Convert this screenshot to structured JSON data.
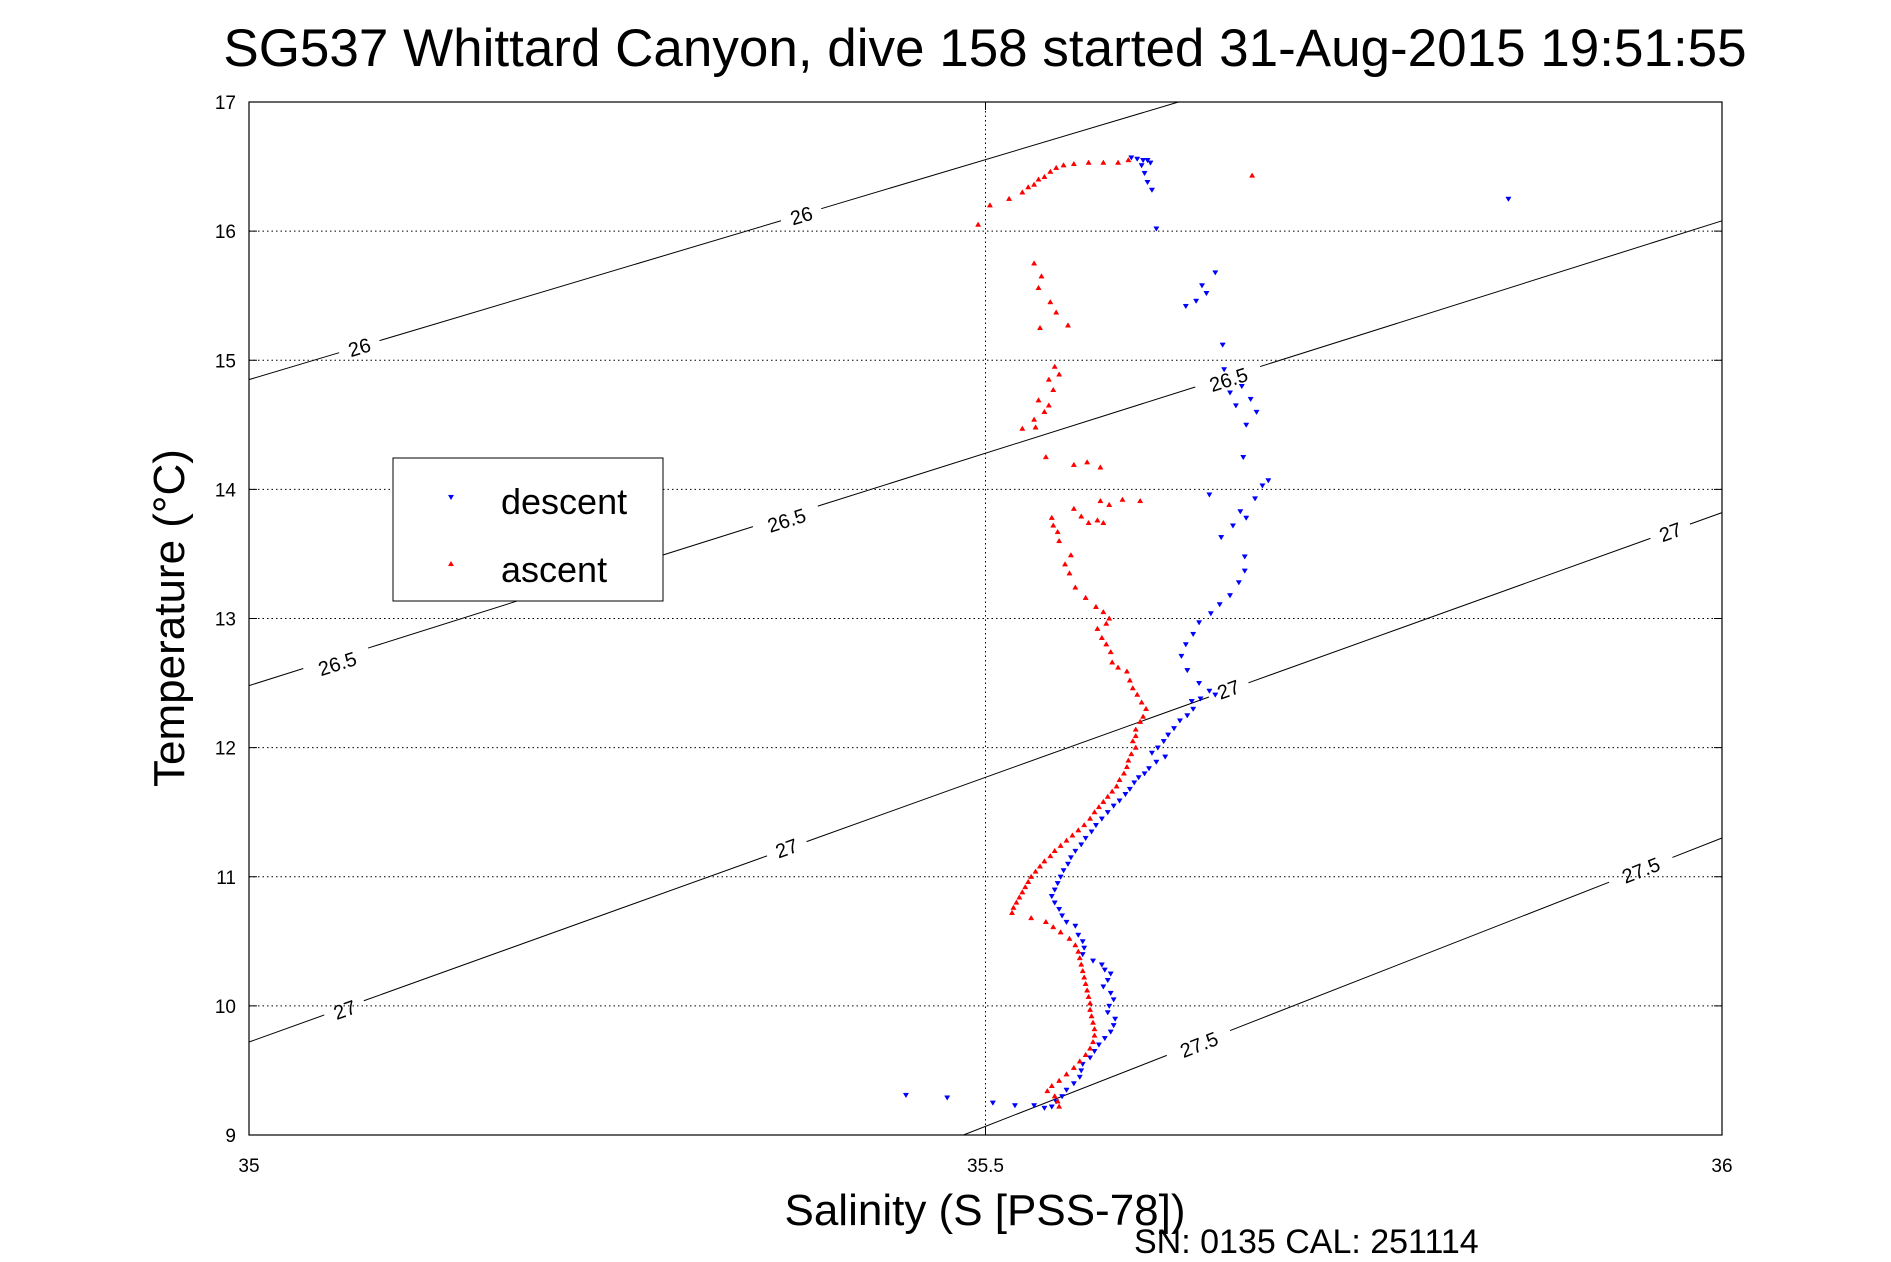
{
  "chart_data": {
    "type": "scatter",
    "title": "SG537 Whittard Canyon, dive 158 started 31-Aug-2015 19:51:55",
    "xlabel": "Salinity (S [PSS-78])",
    "ylabel": "Temperature (°C)",
    "xlim": [
      35,
      36
    ],
    "ylim": [
      9,
      17
    ],
    "x_ticks": [
      "35",
      "35.5",
      "36"
    ],
    "y_ticks": [
      "9",
      "10",
      "11",
      "12",
      "13",
      "14",
      "15",
      "16",
      "17"
    ],
    "grid": true,
    "legend_position": "left",
    "footer": "SN: 0135  CAL: 251114",
    "colors": {
      "descent": "#0000ff",
      "ascent": "#ff0000",
      "contour": "#000000"
    },
    "contours": [
      {
        "sigma": 26.0,
        "line": [
          [
            35.0,
            14.85
          ],
          [
            35.631,
            17.0
          ]
        ],
        "labels": [
          {
            "text": "26",
            "s": 35.075,
            "t": 15.1
          },
          {
            "text": "26",
            "s": 35.375,
            "t": 16.12
          }
        ]
      },
      {
        "sigma": 26.5,
        "line": [
          [
            35.0,
            12.48
          ],
          [
            36.0,
            16.08
          ]
        ],
        "labels": [
          {
            "text": "26.5",
            "s": 35.06,
            "t": 12.65
          },
          {
            "text": "26.5",
            "s": 35.365,
            "t": 13.76
          },
          {
            "text": "26.5",
            "s": 35.665,
            "t": 14.85
          }
        ]
      },
      {
        "sigma": 27.0,
        "line": [
          [
            35.0,
            9.72
          ],
          [
            36.0,
            13.82
          ]
        ],
        "labels": [
          {
            "text": "27",
            "s": 35.065,
            "t": 9.97
          },
          {
            "text": "27",
            "s": 35.365,
            "t": 11.22
          },
          {
            "text": "27",
            "s": 35.665,
            "t": 12.45
          },
          {
            "text": "27",
            "s": 35.965,
            "t": 13.67
          }
        ]
      },
      {
        "sigma": 27.5,
        "line": [
          [
            35.485,
            9.0
          ],
          [
            36.0,
            11.3
          ]
        ],
        "labels": [
          {
            "text": "27.5",
            "s": 35.645,
            "t": 9.7
          },
          {
            "text": "27.5",
            "s": 35.945,
            "t": 11.05
          }
        ]
      }
    ],
    "series": [
      {
        "name": "descent",
        "marker": "triangle-down",
        "points": [
          [
            35.599,
            16.57
          ],
          [
            35.603,
            16.56
          ],
          [
            35.607,
            16.55
          ],
          [
            35.61,
            16.55
          ],
          [
            35.612,
            16.53
          ],
          [
            35.606,
            16.51
          ],
          [
            35.608,
            16.45
          ],
          [
            35.61,
            16.38
          ],
          [
            35.613,
            16.32
          ],
          [
            35.616,
            16.02
          ],
          [
            35.855,
            16.25
          ],
          [
            35.656,
            15.68
          ],
          [
            35.647,
            15.58
          ],
          [
            35.65,
            15.52
          ],
          [
            35.643,
            15.46
          ],
          [
            35.636,
            15.42
          ],
          [
            35.661,
            15.12
          ],
          [
            35.662,
            14.93
          ],
          [
            35.666,
            14.75
          ],
          [
            35.674,
            14.8
          ],
          [
            35.67,
            14.65
          ],
          [
            35.68,
            14.7
          ],
          [
            35.684,
            14.6
          ],
          [
            35.677,
            14.5
          ],
          [
            35.675,
            14.25
          ],
          [
            35.692,
            14.07
          ],
          [
            35.688,
            14.03
          ],
          [
            35.683,
            13.93
          ],
          [
            35.652,
            13.96
          ],
          [
            35.673,
            13.83
          ],
          [
            35.677,
            13.78
          ],
          [
            35.668,
            13.72
          ],
          [
            35.66,
            13.63
          ],
          [
            35.676,
            13.48
          ],
          [
            35.676,
            13.37
          ],
          [
            35.672,
            13.28
          ],
          [
            35.666,
            13.18
          ],
          [
            35.659,
            13.11
          ],
          [
            35.653,
            13.04
          ],
          [
            35.645,
            12.97
          ],
          [
            35.641,
            12.88
          ],
          [
            35.636,
            12.8
          ],
          [
            35.633,
            12.71
          ],
          [
            35.637,
            12.6
          ],
          [
            35.645,
            12.5
          ],
          [
            35.652,
            12.44
          ],
          [
            35.656,
            12.41
          ],
          [
            35.646,
            12.38
          ],
          [
            35.64,
            12.36
          ],
          [
            35.641,
            12.3
          ],
          [
            35.637,
            12.25
          ],
          [
            35.632,
            12.21
          ],
          [
            35.628,
            12.15
          ],
          [
            35.624,
            12.1
          ],
          [
            35.621,
            12.05
          ],
          [
            35.617,
            12.0
          ],
          [
            35.613,
            11.96
          ],
          [
            35.622,
            11.93
          ],
          [
            35.616,
            11.89
          ],
          [
            35.611,
            11.84
          ],
          [
            35.608,
            11.8
          ],
          [
            35.604,
            11.77
          ],
          [
            35.601,
            11.73
          ],
          [
            35.598,
            11.68
          ],
          [
            35.595,
            11.64
          ],
          [
            35.591,
            11.59
          ],
          [
            35.587,
            11.55
          ],
          [
            35.583,
            11.5
          ],
          [
            35.579,
            11.45
          ],
          [
            35.575,
            11.4
          ],
          [
            35.572,
            11.35
          ],
          [
            35.568,
            11.3
          ],
          [
            35.565,
            11.25
          ],
          [
            35.561,
            11.2
          ],
          [
            35.558,
            11.15
          ],
          [
            35.556,
            11.1
          ],
          [
            35.553,
            11.05
          ],
          [
            35.551,
            11.0
          ],
          [
            35.549,
            10.95
          ],
          [
            35.547,
            10.9
          ],
          [
            35.545,
            10.85
          ],
          [
            35.547,
            10.8
          ],
          [
            35.55,
            10.75
          ],
          [
            35.552,
            10.7
          ],
          [
            35.555,
            10.65
          ],
          [
            35.561,
            10.62
          ],
          [
            35.563,
            10.55
          ],
          [
            35.566,
            10.5
          ],
          [
            35.567,
            10.45
          ],
          [
            35.566,
            10.4
          ],
          [
            35.573,
            10.35
          ],
          [
            35.579,
            10.32
          ],
          [
            35.581,
            10.28
          ],
          [
            35.585,
            10.25
          ],
          [
            35.583,
            10.2
          ],
          [
            35.58,
            10.15
          ],
          [
            35.585,
            10.1
          ],
          [
            35.587,
            10.05
          ],
          [
            35.584,
            10.0
          ],
          [
            35.583,
            9.95
          ],
          [
            35.588,
            9.9
          ],
          [
            35.587,
            9.85
          ],
          [
            35.585,
            9.8
          ],
          [
            35.581,
            9.75
          ],
          [
            35.577,
            9.7
          ],
          [
            35.574,
            9.65
          ],
          [
            35.571,
            9.6
          ],
          [
            35.566,
            9.55
          ],
          [
            35.565,
            9.5
          ],
          [
            35.564,
            9.45
          ],
          [
            35.56,
            9.4
          ],
          [
            35.555,
            9.35
          ],
          [
            35.552,
            9.3
          ],
          [
            35.548,
            9.26
          ],
          [
            35.545,
            9.22
          ],
          [
            35.54,
            9.21
          ],
          [
            35.533,
            9.23
          ],
          [
            35.52,
            9.23
          ],
          [
            35.505,
            9.25
          ],
          [
            35.446,
            9.31
          ],
          [
            35.474,
            9.29
          ]
        ]
      },
      {
        "name": "ascent",
        "marker": "triangle-up",
        "points": [
          [
            35.597,
            16.55
          ],
          [
            35.59,
            16.53
          ],
          [
            35.58,
            16.53
          ],
          [
            35.57,
            16.53
          ],
          [
            35.56,
            16.52
          ],
          [
            35.553,
            16.51
          ],
          [
            35.548,
            16.49
          ],
          [
            35.544,
            16.46
          ],
          [
            35.54,
            16.42
          ],
          [
            35.536,
            16.4
          ],
          [
            35.533,
            16.36
          ],
          [
            35.529,
            16.34
          ],
          [
            35.525,
            16.3
          ],
          [
            35.516,
            16.25
          ],
          [
            35.503,
            16.2
          ],
          [
            35.495,
            16.05
          ],
          [
            35.681,
            16.43
          ],
          [
            35.533,
            15.75
          ],
          [
            35.538,
            15.65
          ],
          [
            35.536,
            15.56
          ],
          [
            35.544,
            15.45
          ],
          [
            35.548,
            15.37
          ],
          [
            35.537,
            15.25
          ],
          [
            35.556,
            15.27
          ],
          [
            35.547,
            14.95
          ],
          [
            35.55,
            14.89
          ],
          [
            35.543,
            14.85
          ],
          [
            35.546,
            14.77
          ],
          [
            35.536,
            14.69
          ],
          [
            35.543,
            14.65
          ],
          [
            35.54,
            14.6
          ],
          [
            35.533,
            14.54
          ],
          [
            35.534,
            14.48
          ],
          [
            35.525,
            14.47
          ],
          [
            35.541,
            14.25
          ],
          [
            35.56,
            14.19
          ],
          [
            35.569,
            14.21
          ],
          [
            35.578,
            14.17
          ],
          [
            35.578,
            13.91
          ],
          [
            35.584,
            13.88
          ],
          [
            35.593,
            13.92
          ],
          [
            35.605,
            13.91
          ],
          [
            35.56,
            13.85
          ],
          [
            35.565,
            13.79
          ],
          [
            35.57,
            13.74
          ],
          [
            35.576,
            13.76
          ],
          [
            35.58,
            13.74
          ],
          [
            35.545,
            13.78
          ],
          [
            35.546,
            13.72
          ],
          [
            35.549,
            13.67
          ],
          [
            35.55,
            13.6
          ],
          [
            35.558,
            13.49
          ],
          [
            35.554,
            13.42
          ],
          [
            35.557,
            13.35
          ],
          [
            35.561,
            13.24
          ],
          [
            35.568,
            13.16
          ],
          [
            35.575,
            13.09
          ],
          [
            35.58,
            13.05
          ],
          [
            35.584,
            13.0
          ],
          [
            35.582,
            12.96
          ],
          [
            35.576,
            12.92
          ],
          [
            35.579,
            12.85
          ],
          [
            35.582,
            12.8
          ],
          [
            35.585,
            12.74
          ],
          [
            35.586,
            12.66
          ],
          [
            35.59,
            12.62
          ],
          [
            35.596,
            12.59
          ],
          [
            35.598,
            12.52
          ],
          [
            35.6,
            12.46
          ],
          [
            35.603,
            12.41
          ],
          [
            35.606,
            12.35
          ],
          [
            35.609,
            12.3
          ],
          [
            35.607,
            12.24
          ],
          [
            35.605,
            12.2
          ],
          [
            35.602,
            12.14
          ],
          [
            35.602,
            12.09
          ],
          [
            35.6,
            12.05
          ],
          [
            35.602,
            12.0
          ],
          [
            35.599,
            11.95
          ],
          [
            35.597,
            11.9
          ],
          [
            35.596,
            11.85
          ],
          [
            35.594,
            11.8
          ],
          [
            35.591,
            11.75
          ],
          [
            35.589,
            11.7
          ],
          [
            35.586,
            11.66
          ],
          [
            35.583,
            11.62
          ],
          [
            35.58,
            11.58
          ],
          [
            35.577,
            11.54
          ],
          [
            35.574,
            11.5
          ],
          [
            35.571,
            11.45
          ],
          [
            35.567,
            11.4
          ],
          [
            35.563,
            11.36
          ],
          [
            35.559,
            11.32
          ],
          [
            35.555,
            11.28
          ],
          [
            35.551,
            11.24
          ],
          [
            35.547,
            11.2
          ],
          [
            35.544,
            11.16
          ],
          [
            35.54,
            11.12
          ],
          [
            35.537,
            11.08
          ],
          [
            35.534,
            11.04
          ],
          [
            35.531,
            11.0
          ],
          [
            35.529,
            10.96
          ],
          [
            35.527,
            10.92
          ],
          [
            35.525,
            10.88
          ],
          [
            35.523,
            10.84
          ],
          [
            35.521,
            10.8
          ],
          [
            35.519,
            10.76
          ],
          [
            35.518,
            10.72
          ],
          [
            35.531,
            10.68
          ],
          [
            35.541,
            10.65
          ],
          [
            35.546,
            10.61
          ],
          [
            35.551,
            10.57
          ],
          [
            35.557,
            10.52
          ],
          [
            35.561,
            10.47
          ],
          [
            35.563,
            10.42
          ],
          [
            35.564,
            10.37
          ],
          [
            35.565,
            10.32
          ],
          [
            35.566,
            10.27
          ],
          [
            35.567,
            10.22
          ],
          [
            35.568,
            10.17
          ],
          [
            35.569,
            10.12
          ],
          [
            35.57,
            10.07
          ],
          [
            35.571,
            10.02
          ],
          [
            35.571,
            9.97
          ],
          [
            35.572,
            9.92
          ],
          [
            35.573,
            9.87
          ],
          [
            35.574,
            9.82
          ],
          [
            35.574,
            9.77
          ],
          [
            35.573,
            9.72
          ],
          [
            35.571,
            9.67
          ],
          [
            35.568,
            9.62
          ],
          [
            35.564,
            9.57
          ],
          [
            35.56,
            9.52
          ],
          [
            35.555,
            9.47
          ],
          [
            35.55,
            9.42
          ],
          [
            35.545,
            9.38
          ],
          [
            35.542,
            9.34
          ],
          [
            35.547,
            9.3
          ],
          [
            35.549,
            9.26
          ],
          [
            35.55,
            9.22
          ]
        ]
      }
    ]
  }
}
